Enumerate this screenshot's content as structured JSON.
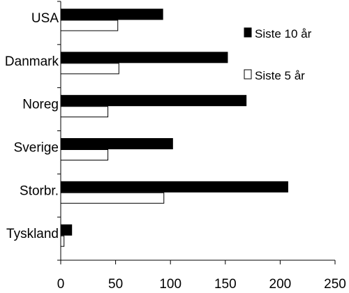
{
  "chart_data": {
    "type": "bar",
    "orientation": "horizontal",
    "categories": [
      "USA",
      "Danmark",
      "Noreg",
      "Sverige",
      "Storbr.",
      "Tyskland"
    ],
    "series": [
      {
        "name": "Siste 10 år",
        "values": [
          93,
          152,
          169,
          102,
          207,
          10
        ],
        "color": "#000000"
      },
      {
        "name": "Siste 5 år",
        "values": [
          52,
          53,
          43,
          43,
          94,
          3
        ],
        "color": "#ffffff"
      }
    ],
    "xlim": [
      0,
      250
    ],
    "xticks": [
      0,
      50,
      100,
      150,
      200,
      250
    ],
    "xlabel": "",
    "ylabel": "",
    "title": "",
    "grid": false,
    "legend_position": "top-right"
  }
}
